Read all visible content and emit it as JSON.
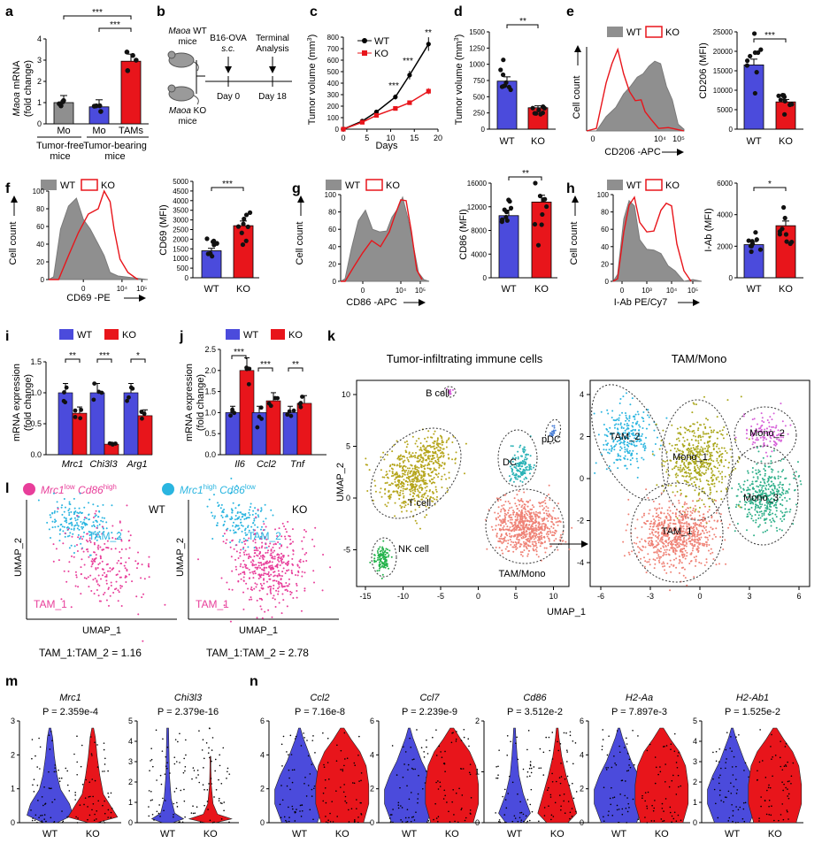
{
  "colors": {
    "wt": "#4b4bdc",
    "ko": "#e8151b",
    "grey": "#8f8f8f",
    "pink": "#e83e9a",
    "cyan": "#2ab5e0",
    "olive": "#b5a51b",
    "green": "#22b24a",
    "teal": "#2ab2b6",
    "salmon": "#ef8276",
    "lime": "#aaa71b",
    "violet": "#d65fd8",
    "mint": "#2fb08a"
  },
  "panels": {
    "a": {
      "label": "a",
      "ylabel_gene": "Maoa",
      "ylabel_rest": "mRNA",
      "ylabel2": "(fold change)",
      "yticks": [
        "0",
        "1",
        "2",
        "3",
        "4"
      ],
      "xlabels": [
        "Mo",
        "Mo",
        "TAMs"
      ],
      "groups": [
        "Tumor-free\nmice",
        "Tumor-bearing\nmice"
      ],
      "group1": "Tumor-free",
      "group1b": "mice",
      "group2": "Tumor-bearing",
      "group2b": "mice",
      "sig1": "***",
      "sig2": "***"
    },
    "b": {
      "label": "b",
      "wt_gene": "Maoa",
      "wt_rest": "WT",
      "wt_line2": "mice",
      "ko_gene": "Maoa",
      "ko_rest": "KO",
      "ko_line2": "mice",
      "inj1": "B16-OVA",
      "inj2": "s.c.",
      "term1": "Terminal",
      "term2": "Analysis",
      "day0": "Day 0",
      "day18": "Day 18"
    },
    "c": {
      "label": "c",
      "ylabel": "Tumor volume (mm",
      "ylabel_sup": "3",
      "ylabel_end": ")",
      "xlabel": "Days",
      "yticks": [
        "0",
        "100",
        "200",
        "300",
        "400",
        "500",
        "600",
        "700",
        "800"
      ],
      "xticks": [
        "0",
        "5",
        "10",
        "15",
        "20"
      ],
      "legend_wt": "WT",
      "legend_ko": "KO",
      "sigs": [
        "***",
        "***",
        "**"
      ]
    },
    "d": {
      "label": "d",
      "ylabel": "Tumor volume (mm",
      "ylabel_sup": "3",
      "ylabel_end": ")",
      "yticks": [
        "0",
        "250",
        "500",
        "750",
        "1000",
        "1250",
        "1500"
      ],
      "xlabels": [
        "WT",
        "KO"
      ],
      "sig": "**"
    },
    "e": {
      "label": "e",
      "legend_wt": "WT",
      "legend_ko": "KO",
      "hist_ylabel": "Cell count",
      "hist_xlabel": "CD206 -APC",
      "ticks": [
        "0",
        "10⁴",
        "10⁵"
      ],
      "ylabel": "CD206 (MFI)",
      "yticks": [
        "0",
        "5000",
        "10000",
        "15000",
        "20000",
        "25000"
      ],
      "xlabels": [
        "WT",
        "KO"
      ],
      "sig": "***"
    },
    "f": {
      "label": "f",
      "legend_wt": "WT",
      "legend_ko": "KO",
      "hist_ylabel": "Cell count",
      "hist_xlabel": "CD69 -PE",
      "ticks": [
        "0",
        "10⁴",
        "10⁵"
      ],
      "hist_yticks": [
        "0",
        "20",
        "40",
        "60",
        "80",
        "100"
      ],
      "ylabel": "CD69 (MFI)",
      "yticks": [
        "0",
        "500",
        "1000",
        "1500",
        "2000",
        "2500",
        "3000",
        "3500",
        "4000",
        "4500",
        "5000"
      ],
      "xlabels": [
        "WT",
        "KO"
      ],
      "sig": "***"
    },
    "g": {
      "label": "g",
      "legend_wt": "WT",
      "legend_ko": "KO",
      "hist_ylabel": "Cell count",
      "hist_xlabel": "CD86 -APC",
      "ticks": [
        "0",
        "10⁴",
        "10⁵"
      ],
      "hist_yticks": [
        "0",
        "20",
        "40",
        "60",
        "80",
        "100"
      ],
      "ylabel": "CD86 (MFI)",
      "yticks": [
        "0",
        "4000",
        "8000",
        "12000",
        "16000"
      ],
      "xlabels": [
        "WT",
        "KO"
      ],
      "sig": "**"
    },
    "h": {
      "label": "h",
      "legend_wt": "WT",
      "legend_ko": "KO",
      "hist_ylabel": "Cell count",
      "hist_xlabel": "I-Ab PE/Cy7",
      "ticks": [
        "0",
        "10³",
        "10⁴",
        "10⁵"
      ],
      "hist_yticks": [
        "0",
        "20",
        "40",
        "60",
        "80",
        "100"
      ],
      "ylabel": "I-Ab (MFI)",
      "yticks": [
        "0",
        "2000",
        "4000",
        "6000"
      ],
      "xlabels": [
        "WT",
        "KO"
      ],
      "sig": "*"
    },
    "i": {
      "label": "i",
      "legend_wt": "WT",
      "legend_ko": "KO",
      "ylabel1": "mRNA expression",
      "ylabel2": "(fold change)",
      "yticks": [
        "0.0",
        "0.5",
        "1.0",
        "1.5"
      ],
      "genes": [
        "Mrc1",
        "Chi3l3",
        "Arg1"
      ],
      "sigs": [
        "**",
        "***",
        "*"
      ]
    },
    "j": {
      "label": "j",
      "legend_wt": "WT",
      "legend_ko": "KO",
      "ylabel1": "mRNA expression",
      "ylabel2": "(fold change)",
      "yticks": [
        "0.0",
        "0.5",
        "1.0",
        "1.5",
        "2.0",
        "2.5"
      ],
      "genes": [
        "Il6",
        "Ccl2",
        "Tnf"
      ],
      "sigs": [
        "***",
        "***",
        "**"
      ]
    },
    "k": {
      "label": "k",
      "title1": "Tumor-infiltrating immune cells",
      "title2": "TAM/Mono",
      "ylabel": "UMAP_2",
      "xlabel": "UMAP_1",
      "xticks1": [
        "-15",
        "-10",
        "-5",
        "0",
        "5",
        "10"
      ],
      "yticks1": [
        "10",
        "5",
        "0",
        "-5"
      ],
      "xticks2": [
        "-6",
        "-3",
        "0",
        "3",
        "6"
      ],
      "yticks2": [
        "4",
        "2",
        "0",
        "-2",
        "-4"
      ],
      "clusters1": [
        "B cell",
        "pDC",
        "DC",
        "T cell",
        "NK cell",
        "TAM/Mono"
      ],
      "clusters2": [
        "TAM_2",
        "Mono_1",
        "Mono_2",
        "Mono_3",
        "TAM_1"
      ]
    },
    "l": {
      "label": "l",
      "leg1_gene": "Mrc1",
      "leg1_sup": "low",
      "leg1_gene2": "Cd86",
      "leg1_sup2": "high",
      "leg2_gene": "Mrc1",
      "leg2_sup": "high",
      "leg2_gene2": "Cd86",
      "leg2_sup2": "low",
      "ylabel": "UMAP_2",
      "xlabel": "UMAP_1",
      "wt": "WT",
      "ko": "KO",
      "tam2": "TAM_2",
      "tam1": "TAM_1",
      "ratio_wt": "TAM_1:TAM_2 = 1.16",
      "ratio_ko": "TAM_1:TAM_2 = 2.78"
    },
    "m": {
      "label": "m",
      "genes": [
        "Mrc1",
        "Chi3l3"
      ],
      "pvals": [
        "P = 2.359e-4",
        "P = 2.379e-16"
      ],
      "yticks": [
        [
          "0",
          "1",
          "2",
          "3"
        ],
        [
          "0",
          "1",
          "2",
          "3",
          "4",
          "5"
        ]
      ],
      "xlabels": [
        "WT",
        "KO"
      ]
    },
    "n": {
      "label": "n",
      "genes": [
        "Ccl2",
        "Ccl7",
        "Cd86",
        "H2-Aa",
        "H2-Ab1"
      ],
      "pvals": [
        "P = 7.16e-8",
        "P = 2.239e-9",
        "P = 3.512e-2",
        "P = 7.897e-3",
        "P = 1.525e-2"
      ],
      "yticks": [
        [
          "0",
          "2",
          "4",
          "6"
        ],
        [
          "0",
          "2",
          "4",
          "6"
        ],
        [
          "0",
          "1",
          "2"
        ],
        [
          "0",
          "2",
          "4",
          "6"
        ],
        [
          "0",
          "1",
          "2",
          "3",
          "4",
          "5"
        ]
      ],
      "xlabels": [
        "WT",
        "KO"
      ]
    }
  },
  "chart_data": [
    {
      "type": "bar",
      "panel": "a",
      "categories": [
        "Mo (Tumor-free)",
        "Mo (Tumor-bearing)",
        "TAMs (Tumor-bearing)"
      ],
      "values": [
        1.0,
        0.8,
        2.95
      ],
      "ylim": [
        0,
        4
      ]
    },
    {
      "type": "line",
      "panel": "c",
      "x": [
        0,
        4,
        7,
        11,
        14,
        18
      ],
      "series": [
        {
          "name": "WT",
          "values": [
            0,
            70,
            150,
            280,
            470,
            740
          ]
        },
        {
          "name": "KO",
          "values": [
            0,
            60,
            120,
            180,
            230,
            330
          ]
        }
      ],
      "ylim": [
        0,
        800
      ],
      "xlim": [
        0,
        20
      ]
    },
    {
      "type": "bar",
      "panel": "d",
      "categories": [
        "WT",
        "KO"
      ],
      "values": [
        740,
        330
      ],
      "ylim": [
        0,
        1500
      ]
    },
    {
      "type": "bar",
      "panel": "e",
      "categories": [
        "WT",
        "KO"
      ],
      "values": [
        16500,
        7000
      ],
      "ylim": [
        0,
        25000
      ]
    },
    {
      "type": "bar",
      "panel": "f",
      "categories": [
        "WT",
        "KO"
      ],
      "values": [
        1400,
        2700
      ],
      "ylim": [
        0,
        5000
      ]
    },
    {
      "type": "bar",
      "panel": "g",
      "categories": [
        "WT",
        "KO"
      ],
      "values": [
        10500,
        12800
      ],
      "ylim": [
        0,
        16000
      ]
    },
    {
      "type": "bar",
      "panel": "h",
      "categories": [
        "WT",
        "KO"
      ],
      "values": [
        2100,
        3300
      ],
      "ylim": [
        0,
        6000
      ]
    },
    {
      "type": "bar",
      "panel": "i",
      "categories": [
        "Mrc1",
        "Chi3l3",
        "Arg1"
      ],
      "series": [
        {
          "name": "WT",
          "values": [
            1.0,
            1.0,
            1.0
          ]
        },
        {
          "name": "KO",
          "values": [
            0.67,
            0.17,
            0.63
          ]
        }
      ],
      "ylim": [
        0,
        1.5
      ]
    },
    {
      "type": "bar",
      "panel": "j",
      "categories": [
        "Il6",
        "Ccl2",
        "Tnf"
      ],
      "series": [
        {
          "name": "WT",
          "values": [
            1.0,
            1.0,
            1.0
          ]
        },
        {
          "name": "KO",
          "values": [
            2.0,
            1.28,
            1.22
          ]
        }
      ],
      "ylim": [
        0,
        2.5
      ]
    }
  ]
}
